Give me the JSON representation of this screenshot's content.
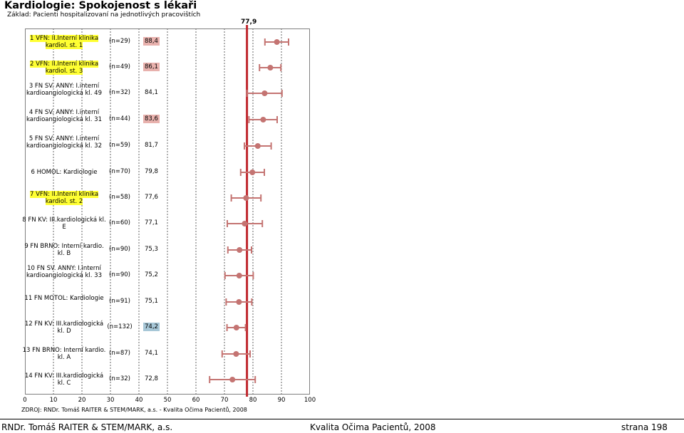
{
  "header": {
    "title": "Kardiologie: Spokojenost s lékaři",
    "subtitle": "Základ: Pacienti hospitalizovaní na jednotlivých pracovištích"
  },
  "chart_data": {
    "type": "scatter",
    "reference_value": 77.9,
    "reference_label": "77,9",
    "xlim": [
      0,
      100
    ],
    "x_ticks": [
      "0",
      "10",
      "20",
      "30",
      "40",
      "50",
      "60",
      "70",
      "80",
      "90",
      "100"
    ],
    "grid": "vertical dashed",
    "colors": {
      "point": "#c47472",
      "reference": "#c0272d",
      "high": "#e8b1ad",
      "low": "#a7c7d7",
      "highlight": "#ffff33"
    },
    "rows": [
      {
        "label": "1 VFN: II.Interní klinika kardiol. st. 1",
        "n": "(n=29)",
        "value": 88.4,
        "score_text": "88,4",
        "ci": [
          84.2,
          92.5
        ],
        "highlight": true,
        "score_bg": "high"
      },
      {
        "label": "2 VFN: II.Interní klinika kardiol. st. 3",
        "n": "(n=49)",
        "value": 86.1,
        "score_text": "86,1",
        "ci": [
          82.3,
          89.8
        ],
        "highlight": true,
        "score_bg": "high"
      },
      {
        "label": "3 FN SV. ANNY: I.interní kardioangiologická kl. 49",
        "n": "(n=32)",
        "value": 84.1,
        "score_text": "84,1",
        "ci": [
          77.9,
          90.2
        ],
        "highlight": false,
        "score_bg": "none"
      },
      {
        "label": "4 FN SV. ANNY: I.interní kardioangiologická kl. 31",
        "n": "(n=44)",
        "value": 83.6,
        "score_text": "83,6",
        "ci": [
          78.6,
          88.5
        ],
        "highlight": false,
        "score_bg": "high"
      },
      {
        "label": "5 FN SV. ANNY: I.interní kardioangiologická kl. 32",
        "n": "(n=59)",
        "value": 81.7,
        "score_text": "81,7",
        "ci": [
          77.0,
          86.4
        ],
        "highlight": false,
        "score_bg": "none"
      },
      {
        "label": "6 HOMOL: Kardiologie",
        "n": "(n=70)",
        "value": 79.8,
        "score_text": "79,8",
        "ci": [
          75.7,
          84.0
        ],
        "highlight": false,
        "score_bg": "none"
      },
      {
        "label": "7 VFN: II.Interní klinika kardiol. st. 2",
        "n": "(n=58)",
        "value": 77.6,
        "score_text": "77,6",
        "ci": [
          72.4,
          82.8
        ],
        "highlight": true,
        "score_bg": "none"
      },
      {
        "label": "8 FN KV: III.kardiologická kl. E",
        "n": "(n=60)",
        "value": 77.1,
        "score_text": "77,1",
        "ci": [
          71.0,
          83.3
        ],
        "highlight": false,
        "score_bg": "none"
      },
      {
        "label": "9 FN BRNO: Interní kardio. kl. B",
        "n": "(n=90)",
        "value": 75.3,
        "score_text": "75,3",
        "ci": [
          71.2,
          79.5
        ],
        "highlight": false,
        "score_bg": "none"
      },
      {
        "label": "10 FN SV. ANNY: I.interní kardioangiologická kl. 33",
        "n": "(n=90)",
        "value": 75.2,
        "score_text": "75,2",
        "ci": [
          70.2,
          80.1
        ],
        "highlight": false,
        "score_bg": "none"
      },
      {
        "label": "11 FN MOTOL: Kardiologie",
        "n": "(n=91)",
        "value": 75.1,
        "score_text": "75,1",
        "ci": [
          70.6,
          79.6
        ],
        "highlight": false,
        "score_bg": "none"
      },
      {
        "label": "12 FN KV: III.kardiologická kl. D",
        "n": "(n=132)",
        "value": 74.2,
        "score_text": "74,2",
        "ci": [
          70.9,
          77.4
        ],
        "highlight": false,
        "score_bg": "low"
      },
      {
        "label": "13 FN BRNO: Interní kardio. kl. A",
        "n": "(n=87)",
        "value": 74.1,
        "score_text": "74,1",
        "ci": [
          69.2,
          79.0
        ],
        "highlight": false,
        "score_bg": "none"
      },
      {
        "label": "14 FN KV: III.kardiologická kl. C",
        "n": "(n=32)",
        "value": 72.8,
        "score_text": "72,8",
        "ci": [
          64.8,
          80.8
        ],
        "highlight": false,
        "score_bg": "none"
      }
    ]
  },
  "source": "ZDROJ: RNDr. Tomáš RAITER & STEM/MARK, a.s. - Kvalita Očima Pacientů, 2008",
  "footer": {
    "left": "RNDr. Tomáš RAITER & STEM/MARK, a.s.",
    "center": "Kvalita Očima Pacientů, 2008",
    "right": "strana 198"
  }
}
